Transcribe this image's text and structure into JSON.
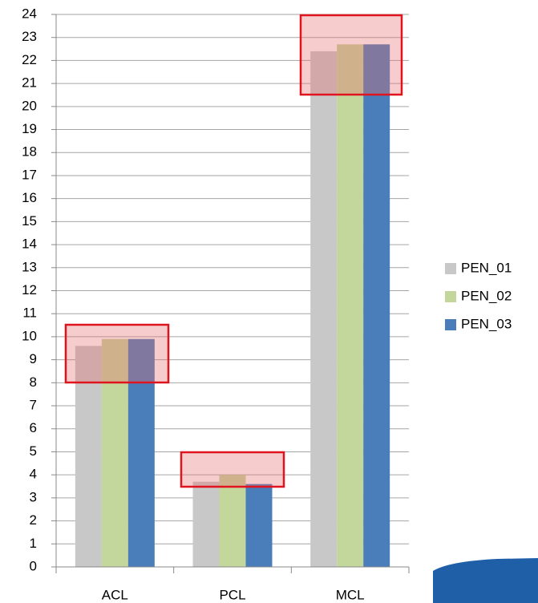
{
  "chart_data": {
    "type": "bar",
    "categories": [
      "ACL",
      "PCL",
      "MCL"
    ],
    "series": [
      {
        "name": "PEN_01",
        "color": "#c8c8c8",
        "values": [
          9.6,
          3.7,
          22.4
        ]
      },
      {
        "name": "PEN_02",
        "color": "#c3d69b",
        "values": [
          9.9,
          4.0,
          22.7
        ]
      },
      {
        "name": "PEN_03",
        "color": "#4a7ebb",
        "values": [
          9.9,
          3.6,
          22.7
        ]
      }
    ],
    "ylim": [
      0,
      24
    ],
    "yticks": [
      0,
      1,
      2,
      3,
      4,
      5,
      6,
      7,
      8,
      9,
      10,
      11,
      12,
      13,
      14,
      15,
      16,
      17,
      18,
      19,
      20,
      21,
      22,
      23,
      24
    ],
    "grid": true,
    "legend": "right"
  }
}
